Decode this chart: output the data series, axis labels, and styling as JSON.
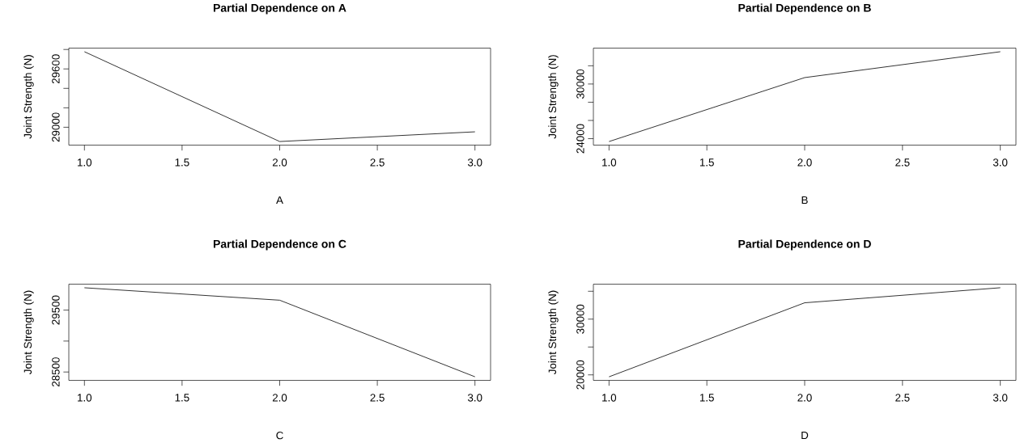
{
  "chart_data": [
    {
      "type": "line",
      "title": "Partial Dependence on A",
      "xlabel": "A",
      "ylabel": "Joint Strength (N)",
      "x": [
        1,
        2,
        3
      ],
      "values": [
        29777,
        28853,
        28953
      ],
      "color": "#000000",
      "line_style": "solid",
      "xlim": [
        0.92,
        3.08
      ],
      "ylim": [
        28816,
        29814
      ],
      "xticks": [
        {
          "value": 1,
          "label": "1.0"
        },
        {
          "value": 1.5,
          "label": "1.5"
        },
        {
          "value": 2,
          "label": "2.0"
        },
        {
          "value": 2.5,
          "label": "2.5"
        },
        {
          "value": 3,
          "label": "3.0"
        }
      ],
      "yticks": [
        29000,
        {
          "value": 29200,
          "label": null
        },
        {
          "value": 29400,
          "label": null
        },
        29600,
        {
          "value": 29800,
          "label": null
        }
      ]
    },
    {
      "type": "line",
      "title": "Partial Dependence on B",
      "xlabel": "B",
      "ylabel": "Joint Strength (N)",
      "x": [
        1,
        2,
        3
      ],
      "values": [
        23684,
        30702,
        33544
      ],
      "color": "#000000",
      "line_style": "solid",
      "xlim": [
        0.92,
        3.08
      ],
      "ylim": [
        23290,
        33938
      ],
      "xticks": [
        {
          "value": 1,
          "label": "1.0"
        },
        {
          "value": 1.5,
          "label": "1.5"
        },
        {
          "value": 2,
          "label": "2.0"
        },
        {
          "value": 2.5,
          "label": "2.5"
        },
        {
          "value": 3,
          "label": "3.0"
        }
      ],
      "yticks": [
        24000,
        {
          "value": 26000,
          "label": null
        },
        {
          "value": 28000,
          "label": null
        },
        30000,
        {
          "value": 32000,
          "label": null
        }
      ]
    },
    {
      "type": "line",
      "title": "Partial Dependence on C",
      "xlabel": "C",
      "ylabel": "Joint Strength (N)",
      "x": [
        1,
        2,
        3
      ],
      "values": [
        29861,
        29660,
        28423
      ],
      "color": "#000000",
      "line_style": "solid",
      "xlim": [
        0.92,
        3.08
      ],
      "ylim": [
        28365,
        29919
      ],
      "xticks": [
        {
          "value": 1,
          "label": "1.0"
        },
        {
          "value": 1.5,
          "label": "1.5"
        },
        {
          "value": 2,
          "label": "2.0"
        },
        {
          "value": 2.5,
          "label": "2.5"
        },
        {
          "value": 3,
          "label": "3.0"
        }
      ],
      "yticks": [
        28500,
        {
          "value": 29000,
          "label": null
        },
        29500
      ]
    },
    {
      "type": "line",
      "title": "Partial Dependence on D",
      "xlabel": "D",
      "ylabel": "Joint Strength (N)",
      "x": [
        1,
        2,
        3
      ],
      "values": [
        19655,
        32931,
        35632
      ],
      "color": "#000000",
      "line_style": "solid",
      "xlim": [
        0.92,
        3.08
      ],
      "ylim": [
        19016,
        36271
      ],
      "xticks": [
        {
          "value": 1,
          "label": "1.0"
        },
        {
          "value": 1.5,
          "label": "1.5"
        },
        {
          "value": 2,
          "label": "2.0"
        },
        {
          "value": 2.5,
          "label": "2.5"
        },
        {
          "value": 3,
          "label": "3.0"
        }
      ],
      "yticks": [
        20000,
        {
          "value": 25000,
          "label": null
        },
        30000,
        {
          "value": 35000,
          "label": null
        }
      ]
    }
  ]
}
